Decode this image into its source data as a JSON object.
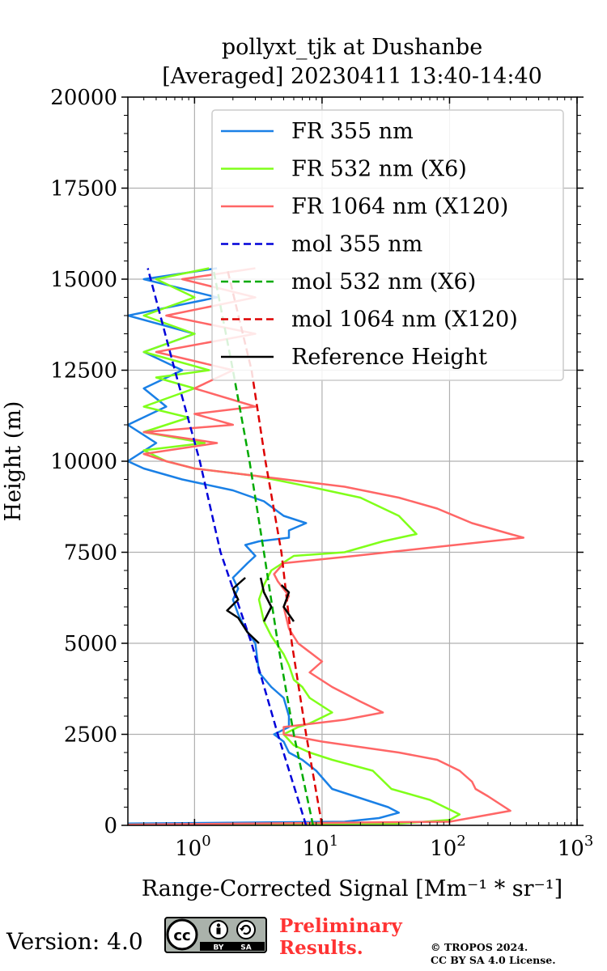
{
  "chart_data": {
    "type": "line",
    "title": [
      "pollyxt_tjk at Dushanbe",
      "[Averaged] 20230411 13:40-14:40"
    ],
    "xlabel": "Range-Corrected Signal [Mm⁻¹ * sr⁻¹]",
    "ylabel": "Height (m)",
    "x_scale": "log",
    "xlim": [
      0.3,
      1000
    ],
    "ylim": [
      0,
      20000
    ],
    "x_ticks": [
      {
        "value": 1,
        "label": "10",
        "exp": "0"
      },
      {
        "value": 10,
        "label": "10",
        "exp": "1"
      },
      {
        "value": 100,
        "label": "10",
        "exp": "2"
      },
      {
        "value": 1000,
        "label": "10",
        "exp": "3"
      }
    ],
    "y_ticks": [
      {
        "value": 0,
        "label": "0"
      },
      {
        "value": 2500,
        "label": "2500"
      },
      {
        "value": 5000,
        "label": "5000"
      },
      {
        "value": 7500,
        "label": "7500"
      },
      {
        "value": 10000,
        "label": "10000"
      },
      {
        "value": 12500,
        "label": "12500"
      },
      {
        "value": 15000,
        "label": "15000"
      },
      {
        "value": 17500,
        "label": "17500"
      },
      {
        "value": 20000,
        "label": "20000"
      }
    ],
    "grid": true,
    "legend_position": "top-right",
    "series": [
      {
        "name": "FR 355 nm",
        "color": "#1a80e6",
        "dash": "solid",
        "points": [
          [
            0.3,
            50
          ],
          [
            15,
            100
          ],
          [
            28,
            200
          ],
          [
            40,
            350
          ],
          [
            33,
            500
          ],
          [
            22,
            700
          ],
          [
            12,
            1000
          ],
          [
            9,
            1500
          ],
          [
            7,
            1800
          ],
          [
            5.5,
            2000
          ],
          [
            5,
            2300
          ],
          [
            4.2,
            2500
          ],
          [
            5.5,
            2700
          ],
          [
            5.5,
            3000
          ],
          [
            5,
            3500
          ],
          [
            4,
            3800
          ],
          [
            3.2,
            4200
          ],
          [
            3,
            5000
          ],
          [
            2.5,
            5400
          ],
          [
            2.2,
            5800
          ],
          [
            2,
            6200
          ],
          [
            2.2,
            6500
          ],
          [
            2,
            6800
          ],
          [
            2.6,
            7200
          ],
          [
            3,
            7400
          ],
          [
            2.5,
            7700
          ],
          [
            3.2,
            7800
          ],
          [
            5.5,
            7900
          ],
          [
            5.5,
            8100
          ],
          [
            7.5,
            8300
          ],
          [
            5,
            8500
          ],
          [
            3.5,
            8900
          ],
          [
            2,
            9200
          ],
          [
            0.8,
            9500
          ],
          [
            0.4,
            9800
          ],
          [
            0.3,
            10000
          ],
          [
            0.5,
            10500
          ],
          [
            0.3,
            11000
          ],
          [
            0.6,
            11500
          ],
          [
            0.4,
            12000
          ],
          [
            0.8,
            12500
          ],
          [
            0.4,
            13000
          ],
          [
            1,
            13500
          ],
          [
            0.3,
            14000
          ],
          [
            1.5,
            14500
          ],
          [
            0.4,
            15000
          ],
          [
            1.5,
            15300
          ]
        ]
      },
      {
        "name": "FR 532 nm (X6)",
        "color": "#80ff1a",
        "dash": "solid",
        "points": [
          [
            0.3,
            20
          ],
          [
            40,
            50
          ],
          [
            100,
            150
          ],
          [
            120,
            300
          ],
          [
            70,
            700
          ],
          [
            35,
            1000
          ],
          [
            25,
            1500
          ],
          [
            12,
            1800
          ],
          [
            8,
            2000
          ],
          [
            6,
            2200
          ],
          [
            5,
            2500
          ],
          [
            6.5,
            2700
          ],
          [
            8,
            2800
          ],
          [
            12,
            3100
          ],
          [
            8,
            3500
          ],
          [
            7,
            3800
          ],
          [
            6,
            4000
          ],
          [
            5.5,
            4400
          ],
          [
            5,
            4700
          ],
          [
            4,
            5200
          ],
          [
            3.5,
            5600
          ],
          [
            3.2,
            6200
          ],
          [
            3.5,
            6600
          ],
          [
            4,
            7000
          ],
          [
            6,
            7400
          ],
          [
            15,
            7500
          ],
          [
            30,
            7800
          ],
          [
            55,
            8000
          ],
          [
            40,
            8500
          ],
          [
            20,
            9000
          ],
          [
            8,
            9300
          ],
          [
            3,
            9600
          ],
          [
            1,
            9800
          ],
          [
            0.6,
            10000
          ],
          [
            0.4,
            10300
          ],
          [
            1.2,
            10500
          ],
          [
            0.4,
            10800
          ],
          [
            0.9,
            11200
          ],
          [
            0.4,
            11500
          ],
          [
            1,
            12000
          ],
          [
            0.5,
            12300
          ],
          [
            1.3,
            12500
          ],
          [
            0.4,
            13000
          ],
          [
            1,
            13500
          ],
          [
            0.4,
            14000
          ],
          [
            1,
            14500
          ],
          [
            0.5,
            15000
          ],
          [
            1.3,
            15300
          ]
        ]
      },
      {
        "name": "FR 1064 nm (X120)",
        "color": "#ff6666",
        "dash": "solid",
        "points": [
          [
            0.3,
            20
          ],
          [
            100,
            100
          ],
          [
            300,
            400
          ],
          [
            200,
            800
          ],
          [
            160,
            1000
          ],
          [
            150,
            1200
          ],
          [
            120,
            1500
          ],
          [
            80,
            1800
          ],
          [
            40,
            2000
          ],
          [
            10,
            2300
          ],
          [
            5,
            2500
          ],
          [
            5,
            2700
          ],
          [
            15,
            2900
          ],
          [
            30,
            3100
          ],
          [
            20,
            3400
          ],
          [
            12,
            3800
          ],
          [
            8,
            4200
          ],
          [
            10,
            4500
          ],
          [
            6.5,
            5000
          ],
          [
            5.5,
            5400
          ],
          [
            5,
            6000
          ],
          [
            5.5,
            6300
          ],
          [
            4.5,
            6700
          ],
          [
            4.2,
            6900
          ],
          [
            5,
            7200
          ],
          [
            18,
            7400
          ],
          [
            60,
            7600
          ],
          [
            380,
            7900
          ],
          [
            300,
            8000
          ],
          [
            150,
            8300
          ],
          [
            80,
            8700
          ],
          [
            40,
            9000
          ],
          [
            15,
            9300
          ],
          [
            3,
            9600
          ],
          [
            1,
            9800
          ],
          [
            0.6,
            10000
          ],
          [
            0.4,
            10200
          ],
          [
            1.5,
            10500
          ],
          [
            0.4,
            10800
          ],
          [
            2,
            11000
          ],
          [
            1,
            11300
          ],
          [
            3,
            11500
          ],
          [
            1,
            12000
          ],
          [
            2,
            12500
          ],
          [
            0.5,
            13000
          ],
          [
            3,
            13500
          ],
          [
            0.6,
            14000
          ],
          [
            3,
            14500
          ],
          [
            0.8,
            15000
          ],
          [
            3,
            15300
          ]
        ]
      },
      {
        "name": "mol 355 nm",
        "color": "#0000d9",
        "dash": "dashed",
        "points": [
          [
            7.5,
            0
          ],
          [
            4.5,
            2500
          ],
          [
            2.8,
            5000
          ],
          [
            1.6,
            7500
          ],
          [
            1.1,
            10000
          ],
          [
            0.7,
            12500
          ],
          [
            0.43,
            15300
          ]
        ]
      },
      {
        "name": "mol 532 nm (X6)",
        "color": "#00aa00",
        "dash": "dashed",
        "points": [
          [
            8.5,
            0
          ],
          [
            6,
            2500
          ],
          [
            4.5,
            5000
          ],
          [
            3.5,
            7500
          ],
          [
            2.7,
            10000
          ],
          [
            2,
            12500
          ],
          [
            1.4,
            15300
          ]
        ]
      },
      {
        "name": "mol 1064 nm (X120)",
        "color": "#dd0000",
        "dash": "dashed",
        "points": [
          [
            10,
            0
          ],
          [
            7.5,
            2500
          ],
          [
            5.8,
            5000
          ],
          [
            4.8,
            7500
          ],
          [
            3.6,
            10000
          ],
          [
            2.8,
            12500
          ],
          [
            1.8,
            15300
          ]
        ]
      },
      {
        "name": "Reference Height",
        "color": "#000000",
        "dash": "solid",
        "points": [
          [
            3.2,
            5000
          ],
          [
            2.6,
            5300
          ],
          [
            2.2,
            5700
          ],
          [
            1.8,
            5900
          ],
          [
            2.2,
            6200
          ],
          [
            2,
            6500
          ],
          [
            2.5,
            6800
          ]
        ],
        "extra_segments": [
          [
            [
              3.5,
              5600
            ],
            [
              4,
              6000
            ],
            [
              3.5,
              6400
            ],
            [
              3.3,
              6800
            ]
          ],
          [
            [
              6,
              5600
            ],
            [
              5,
              6000
            ],
            [
              5.5,
              6400
            ],
            [
              4.8,
              6600
            ]
          ]
        ]
      }
    ]
  },
  "footer": {
    "version": "Version: 4.0",
    "cc_label": "cc",
    "cc_by": "BY",
    "cc_sa": "SA",
    "prelim_line1": "Preliminary",
    "prelim_line2": "Results.",
    "copyright_line1": "© TROPOS 2024.",
    "copyright_line2": "CC BY SA 4.0 License."
  }
}
